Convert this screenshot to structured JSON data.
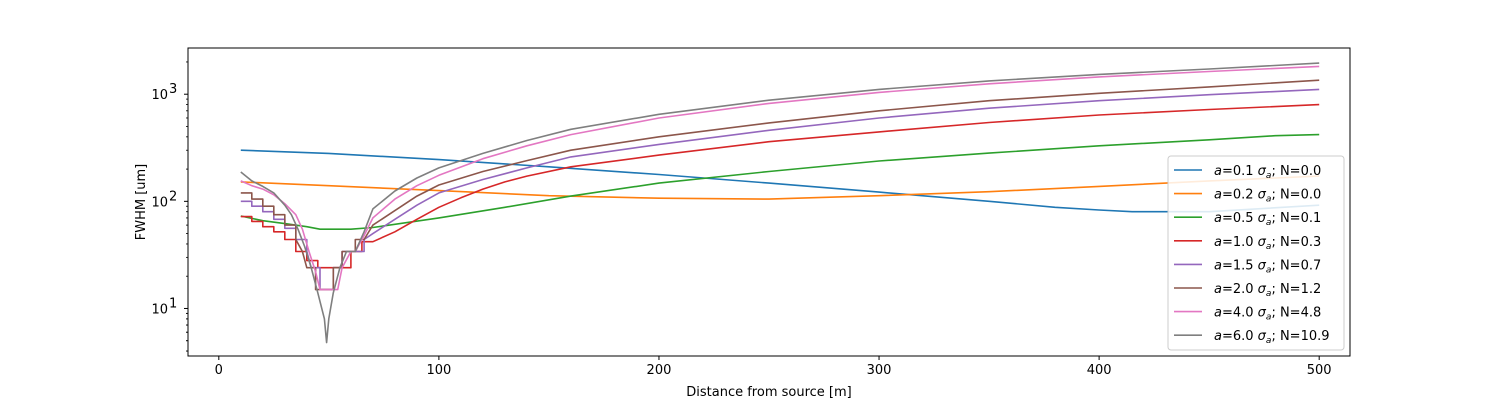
{
  "chart_data": {
    "type": "line",
    "title": "",
    "xlabel": "Distance from source [m]",
    "ylabel": "FWHM [um]",
    "xscale": "linear",
    "yscale": "log",
    "xlim": [
      -14,
      514
    ],
    "ylim": [
      3.6,
      2700
    ],
    "xticks": [
      0,
      100,
      200,
      300,
      400,
      500
    ],
    "xtick_labels": [
      "0",
      "100",
      "200",
      "300",
      "400",
      "500"
    ],
    "yticks": [
      10,
      100,
      1000
    ],
    "ytick_labels": [
      {
        "base": "10",
        "exp": "1"
      },
      {
        "base": "10",
        "exp": "2"
      },
      {
        "base": "10",
        "exp": "3"
      }
    ],
    "grid": false,
    "legend_position": "right",
    "series": [
      {
        "name": {
          "a": "0.1",
          "sigma": "σ",
          "sub": "a",
          "n": "N=0.0"
        },
        "color": "#1f77b4",
        "points": [
          [
            10,
            300
          ],
          [
            50,
            280
          ],
          [
            100,
            245
          ],
          [
            150,
            210
          ],
          [
            200,
            178
          ],
          [
            250,
            148
          ],
          [
            300,
            122
          ],
          [
            350,
            100
          ],
          [
            380,
            88
          ],
          [
            400,
            83
          ],
          [
            415,
            80
          ],
          [
            450,
            80
          ],
          [
            500,
            92
          ]
        ]
      },
      {
        "name": {
          "a": "0.2",
          "sigma": "σ",
          "sub": "a",
          "n": "N=0.0"
        },
        "color": "#ff7f0e",
        "points": [
          [
            10,
            152
          ],
          [
            50,
            140
          ],
          [
            100,
            126
          ],
          [
            150,
            113
          ],
          [
            200,
            107
          ],
          [
            250,
            105
          ],
          [
            300,
            113
          ],
          [
            350,
            123
          ],
          [
            400,
            138
          ],
          [
            450,
            155
          ],
          [
            500,
            172
          ]
        ]
      },
      {
        "name": {
          "a": "0.5",
          "sigma": "σ",
          "sub": "a",
          "n": "N=0.1"
        },
        "color": "#2ca02c",
        "points": [
          [
            10,
            73
          ],
          [
            20,
            66
          ],
          [
            30,
            62
          ],
          [
            40,
            58
          ],
          [
            46,
            55
          ],
          [
            50,
            55
          ],
          [
            60,
            55
          ],
          [
            70,
            57
          ],
          [
            100,
            70
          ],
          [
            130,
            88
          ],
          [
            160,
            112
          ],
          [
            200,
            148
          ],
          [
            250,
            190
          ],
          [
            300,
            238
          ],
          [
            350,
            282
          ],
          [
            400,
            330
          ],
          [
            450,
            375
          ],
          [
            480,
            410
          ],
          [
            500,
            420
          ]
        ]
      },
      {
        "name": {
          "a": "1.0",
          "sigma": "σ",
          "sub": "a",
          "n": "N=0.3"
        },
        "color": "#d62728",
        "points": [
          [
            10,
            72
          ],
          [
            15,
            72
          ],
          [
            15,
            65
          ],
          [
            20,
            65
          ],
          [
            20,
            58
          ],
          [
            25,
            58
          ],
          [
            25,
            52
          ],
          [
            30,
            52
          ],
          [
            30,
            44
          ],
          [
            35,
            44
          ],
          [
            35,
            34
          ],
          [
            40,
            34
          ],
          [
            40,
            28
          ],
          [
            45,
            28
          ],
          [
            45,
            24
          ],
          [
            60,
            24
          ],
          [
            60,
            34
          ],
          [
            65,
            34
          ],
          [
            65,
            42
          ],
          [
            70,
            42
          ],
          [
            80,
            52
          ],
          [
            90,
            68
          ],
          [
            100,
            88
          ],
          [
            110,
            108
          ],
          [
            120,
            130
          ],
          [
            130,
            152
          ],
          [
            140,
            172
          ],
          [
            160,
            210
          ],
          [
            200,
            270
          ],
          [
            250,
            360
          ],
          [
            300,
            445
          ],
          [
            350,
            545
          ],
          [
            400,
            640
          ],
          [
            450,
            720
          ],
          [
            500,
            800
          ]
        ]
      },
      {
        "name": {
          "a": "1.5",
          "sigma": "σ",
          "sub": "a",
          "n": "N=0.7"
        },
        "color": "#9467bd",
        "points": [
          [
            10,
            100
          ],
          [
            15,
            100
          ],
          [
            15,
            90
          ],
          [
            20,
            90
          ],
          [
            20,
            80
          ],
          [
            25,
            80
          ],
          [
            25,
            68
          ],
          [
            30,
            68
          ],
          [
            30,
            56
          ],
          [
            35,
            56
          ],
          [
            35,
            44
          ],
          [
            40,
            44
          ],
          [
            40,
            34
          ],
          [
            42,
            24
          ],
          [
            46,
            24
          ],
          [
            46,
            15
          ],
          [
            52,
            15
          ],
          [
            52,
            24
          ],
          [
            56,
            24
          ],
          [
            56,
            34
          ],
          [
            60,
            34
          ],
          [
            60,
            34
          ],
          [
            66,
            34
          ],
          [
            66,
            44
          ],
          [
            70,
            50
          ],
          [
            80,
            68
          ],
          [
            90,
            92
          ],
          [
            100,
            120
          ],
          [
            120,
            160
          ],
          [
            140,
            205
          ],
          [
            160,
            260
          ],
          [
            200,
            340
          ],
          [
            250,
            460
          ],
          [
            300,
            600
          ],
          [
            350,
            740
          ],
          [
            400,
            870
          ],
          [
            450,
            990
          ],
          [
            500,
            1110
          ]
        ]
      },
      {
        "name": {
          "a": "2.0",
          "sigma": "σ",
          "sub": "a",
          "n": "N=1.2"
        },
        "color": "#8c564b",
        "points": [
          [
            10,
            120
          ],
          [
            15,
            120
          ],
          [
            15,
            105
          ],
          [
            20,
            105
          ],
          [
            20,
            90
          ],
          [
            25,
            90
          ],
          [
            25,
            75
          ],
          [
            30,
            75
          ],
          [
            30,
            60
          ],
          [
            35,
            60
          ],
          [
            35,
            44
          ],
          [
            38,
            34
          ],
          [
            40,
            24
          ],
          [
            44,
            24
          ],
          [
            44,
            15
          ],
          [
            52,
            15
          ],
          [
            52,
            24
          ],
          [
            56,
            24
          ],
          [
            56,
            34
          ],
          [
            62,
            34
          ],
          [
            62,
            44
          ],
          [
            66,
            44
          ],
          [
            70,
            60
          ],
          [
            80,
            82
          ],
          [
            90,
            112
          ],
          [
            100,
            142
          ],
          [
            120,
            190
          ],
          [
            140,
            240
          ],
          [
            160,
            300
          ],
          [
            200,
            400
          ],
          [
            250,
            540
          ],
          [
            300,
            700
          ],
          [
            350,
            870
          ],
          [
            400,
            1020
          ],
          [
            450,
            1170
          ],
          [
            500,
            1350
          ]
        ]
      },
      {
        "name": {
          "a": "4.0",
          "sigma": "σ",
          "sub": "a",
          "n": "N=4.8"
        },
        "color": "#e377c2",
        "points": [
          [
            10,
            155
          ],
          [
            15,
            140
          ],
          [
            20,
            130
          ],
          [
            25,
            115
          ],
          [
            30,
            95
          ],
          [
            35,
            75
          ],
          [
            38,
            55
          ],
          [
            41,
            34
          ],
          [
            44,
            22
          ],
          [
            46,
            15
          ],
          [
            50,
            15
          ],
          [
            54,
            15
          ],
          [
            56,
            24
          ],
          [
            60,
            34
          ],
          [
            62,
            34
          ],
          [
            66,
            48
          ],
          [
            70,
            70
          ],
          [
            80,
            105
          ],
          [
            90,
            140
          ],
          [
            100,
            175
          ],
          [
            120,
            250
          ],
          [
            140,
            330
          ],
          [
            160,
            420
          ],
          [
            200,
            600
          ],
          [
            250,
            820
          ],
          [
            300,
            1040
          ],
          [
            350,
            1250
          ],
          [
            400,
            1450
          ],
          [
            450,
            1630
          ],
          [
            500,
            1820
          ]
        ]
      },
      {
        "name": {
          "a": "6.0",
          "sigma": "σ",
          "sub": "a",
          "n": "N=10.9"
        },
        "color": "#7f7f7f",
        "points": [
          [
            10,
            188
          ],
          [
            15,
            155
          ],
          [
            20,
            138
          ],
          [
            25,
            120
          ],
          [
            30,
            92
          ],
          [
            33,
            75
          ],
          [
            36,
            55
          ],
          [
            39,
            38
          ],
          [
            42,
            24
          ],
          [
            45,
            14
          ],
          [
            48,
            8
          ],
          [
            49,
            4.8
          ],
          [
            50,
            8
          ],
          [
            52,
            14
          ],
          [
            55,
            24
          ],
          [
            58,
            34
          ],
          [
            62,
            34
          ],
          [
            66,
            52
          ],
          [
            70,
            85
          ],
          [
            80,
            125
          ],
          [
            90,
            165
          ],
          [
            100,
            205
          ],
          [
            120,
            280
          ],
          [
            140,
            370
          ],
          [
            160,
            470
          ],
          [
            200,
            650
          ],
          [
            250,
            880
          ],
          [
            300,
            1110
          ],
          [
            350,
            1330
          ],
          [
            400,
            1530
          ],
          [
            450,
            1720
          ],
          [
            500,
            1950
          ]
        ]
      }
    ]
  }
}
